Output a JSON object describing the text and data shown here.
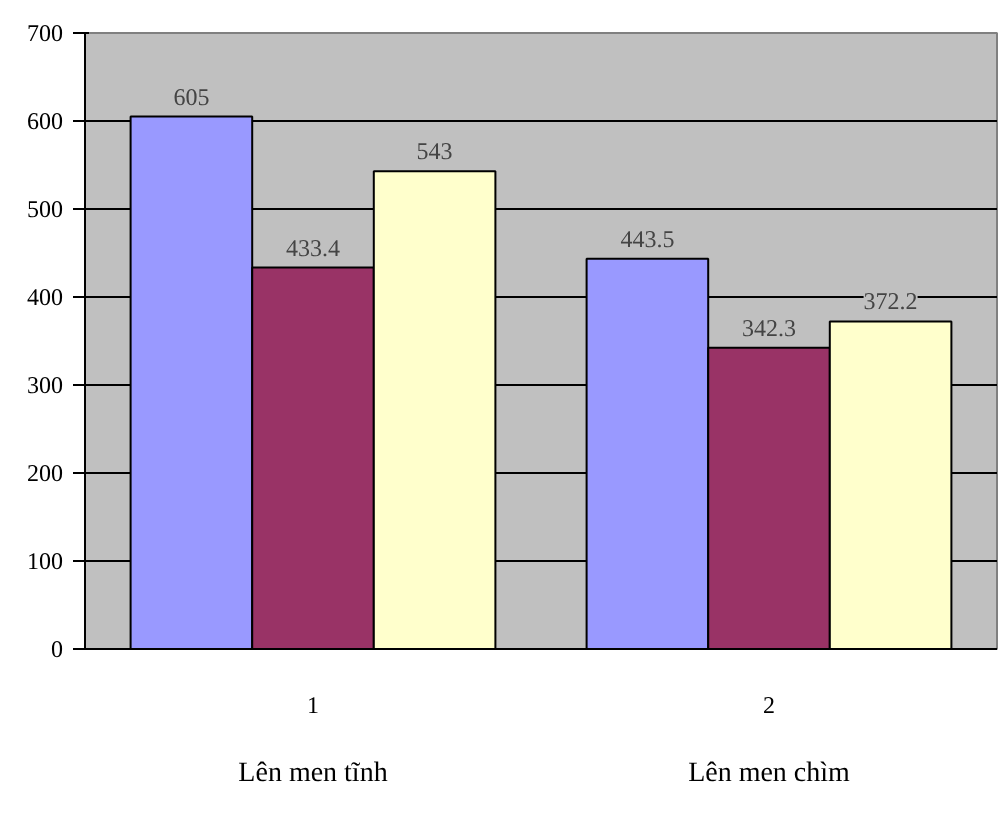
{
  "chart_data": {
    "type": "bar",
    "categories": [
      "1",
      "2"
    ],
    "series": [
      {
        "color": "#9999ff",
        "values": [
          605,
          443.5
        ]
      },
      {
        "color": "#993366",
        "values": [
          433.4,
          342.3
        ]
      },
      {
        "color": "#ffffcc",
        "values": [
          543,
          372.2
        ]
      }
    ],
    "ylim": [
      0,
      700
    ],
    "yticks": [
      0,
      100,
      200,
      300,
      400,
      500,
      600,
      700
    ],
    "grid": "y",
    "data_labels": true,
    "annotations": [
      "Lên men tĩnh",
      "Lên men chìm"
    ]
  }
}
